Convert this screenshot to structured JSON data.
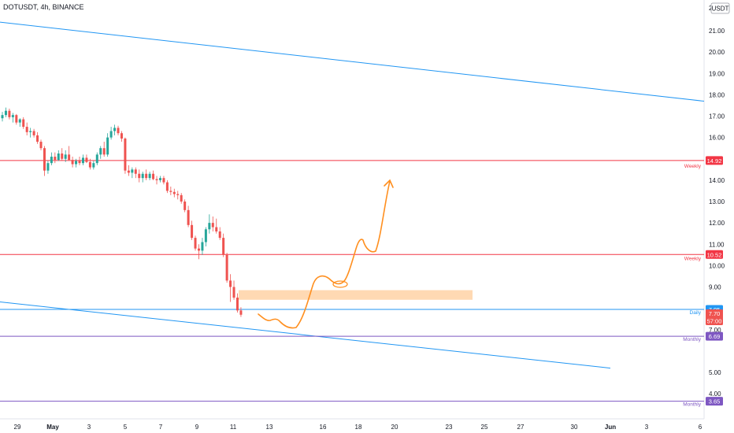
{
  "header": {
    "symbol_title": "DOTUSDT, 4h, BINANCE",
    "currency_badge": "USDT",
    "top_axis_value": "2"
  },
  "colors": {
    "bull": "#26a69a",
    "bear": "#ef5350",
    "red_level": "#f23645",
    "blue_line": "#2196f3",
    "purple_level": "#7e57c2",
    "orange": "#ff8f1f",
    "zone_fill": "#ffcc99",
    "axis_text": "#131722",
    "price_red": "#ef5350"
  },
  "chart_data": {
    "type": "candlestick",
    "symbol": "DOTUSDT",
    "interval": "4h",
    "exchange": "BINANCE",
    "x_tick_labels": [
      "29",
      "May",
      "3",
      "5",
      "7",
      "9",
      "11",
      "13",
      "16",
      "18",
      "20",
      "23",
      "25",
      "27",
      "30",
      "Jun",
      "3",
      "6"
    ],
    "y_tick_labels": [
      "21.00",
      "20.00",
      "19.00",
      "18.00",
      "17.00",
      "16.00",
      "14.00",
      "13.00",
      "12.00",
      "11.00",
      "10.00",
      "9.00",
      "8.00",
      "7.00",
      "5.00",
      "4.00",
      "3.65"
    ],
    "y_range": [
      3.4,
      22
    ],
    "candles": [
      {
        "o": 16.9,
        "h": 17.2,
        "l": 16.75,
        "c": 17.05
      },
      {
        "o": 17.05,
        "h": 17.4,
        "l": 16.95,
        "c": 17.25
      },
      {
        "o": 17.25,
        "h": 17.35,
        "l": 16.85,
        "c": 16.95
      },
      {
        "o": 16.95,
        "h": 17.15,
        "l": 16.7,
        "c": 17.05
      },
      {
        "o": 17.05,
        "h": 17.1,
        "l": 16.6,
        "c": 16.7
      },
      {
        "o": 16.7,
        "h": 16.9,
        "l": 16.5,
        "c": 16.85
      },
      {
        "o": 16.85,
        "h": 16.95,
        "l": 16.4,
        "c": 16.5
      },
      {
        "o": 16.5,
        "h": 16.7,
        "l": 16.1,
        "c": 16.25
      },
      {
        "o": 16.25,
        "h": 16.45,
        "l": 16.0,
        "c": 16.3
      },
      {
        "o": 16.3,
        "h": 16.4,
        "l": 16.0,
        "c": 16.1
      },
      {
        "o": 16.1,
        "h": 16.25,
        "l": 15.7,
        "c": 15.8
      },
      {
        "o": 15.8,
        "h": 15.9,
        "l": 15.4,
        "c": 15.5
      },
      {
        "o": 15.5,
        "h": 15.6,
        "l": 14.2,
        "c": 14.45
      },
      {
        "o": 14.45,
        "h": 14.9,
        "l": 14.3,
        "c": 14.8
      },
      {
        "o": 14.8,
        "h": 15.3,
        "l": 14.7,
        "c": 15.1
      },
      {
        "o": 15.1,
        "h": 15.3,
        "l": 14.8,
        "c": 14.95
      },
      {
        "o": 14.95,
        "h": 15.4,
        "l": 14.9,
        "c": 15.25
      },
      {
        "o": 15.25,
        "h": 15.5,
        "l": 14.9,
        "c": 15.0
      },
      {
        "o": 15.0,
        "h": 15.4,
        "l": 14.85,
        "c": 15.2
      },
      {
        "o": 15.2,
        "h": 15.6,
        "l": 14.9,
        "c": 14.95
      },
      {
        "o": 14.95,
        "h": 15.1,
        "l": 14.6,
        "c": 14.75
      },
      {
        "o": 14.75,
        "h": 15.0,
        "l": 14.6,
        "c": 14.9
      },
      {
        "o": 14.9,
        "h": 15.1,
        "l": 14.7,
        "c": 14.8
      },
      {
        "o": 14.8,
        "h": 15.2,
        "l": 14.7,
        "c": 15.05
      },
      {
        "o": 15.05,
        "h": 15.2,
        "l": 14.8,
        "c": 14.85
      },
      {
        "o": 14.85,
        "h": 15.0,
        "l": 14.5,
        "c": 14.6
      },
      {
        "o": 14.6,
        "h": 14.9,
        "l": 14.5,
        "c": 14.8
      },
      {
        "o": 14.8,
        "h": 15.3,
        "l": 14.7,
        "c": 15.2
      },
      {
        "o": 15.2,
        "h": 15.6,
        "l": 15.0,
        "c": 15.5
      },
      {
        "o": 15.5,
        "h": 15.8,
        "l": 15.1,
        "c": 15.2
      },
      {
        "o": 15.2,
        "h": 16.2,
        "l": 15.1,
        "c": 16.0
      },
      {
        "o": 16.0,
        "h": 16.5,
        "l": 15.9,
        "c": 16.3
      },
      {
        "o": 16.3,
        "h": 16.6,
        "l": 16.1,
        "c": 16.45
      },
      {
        "o": 16.45,
        "h": 16.55,
        "l": 16.1,
        "c": 16.2
      },
      {
        "o": 16.2,
        "h": 16.3,
        "l": 15.8,
        "c": 15.95
      },
      {
        "o": 15.95,
        "h": 16.0,
        "l": 14.3,
        "c": 14.45
      },
      {
        "o": 14.45,
        "h": 14.7,
        "l": 14.2,
        "c": 14.35
      },
      {
        "o": 14.35,
        "h": 14.6,
        "l": 14.1,
        "c": 14.5
      },
      {
        "o": 14.5,
        "h": 14.6,
        "l": 14.1,
        "c": 14.3
      },
      {
        "o": 14.3,
        "h": 14.5,
        "l": 13.9,
        "c": 14.1
      },
      {
        "o": 14.1,
        "h": 14.4,
        "l": 13.9,
        "c": 14.3
      },
      {
        "o": 14.3,
        "h": 14.5,
        "l": 14.0,
        "c": 14.1
      },
      {
        "o": 14.1,
        "h": 14.4,
        "l": 14.0,
        "c": 14.3
      },
      {
        "o": 14.3,
        "h": 14.45,
        "l": 14.0,
        "c": 14.05
      },
      {
        "o": 14.05,
        "h": 14.2,
        "l": 13.8,
        "c": 14.0
      },
      {
        "o": 14.0,
        "h": 14.2,
        "l": 13.9,
        "c": 14.1
      },
      {
        "o": 14.1,
        "h": 14.2,
        "l": 13.8,
        "c": 13.9
      },
      {
        "o": 13.9,
        "h": 14.0,
        "l": 13.4,
        "c": 13.5
      },
      {
        "o": 13.5,
        "h": 13.7,
        "l": 13.3,
        "c": 13.45
      },
      {
        "o": 13.45,
        "h": 13.6,
        "l": 13.2,
        "c": 13.35
      },
      {
        "o": 13.35,
        "h": 13.5,
        "l": 13.1,
        "c": 13.3
      },
      {
        "o": 13.3,
        "h": 13.4,
        "l": 12.9,
        "c": 13.0
      },
      {
        "o": 13.0,
        "h": 13.1,
        "l": 12.5,
        "c": 12.6
      },
      {
        "o": 12.6,
        "h": 12.8,
        "l": 11.8,
        "c": 11.9
      },
      {
        "o": 11.9,
        "h": 12.1,
        "l": 11.2,
        "c": 11.3
      },
      {
        "o": 11.3,
        "h": 11.4,
        "l": 10.7,
        "c": 10.8
      },
      {
        "o": 10.8,
        "h": 11.0,
        "l": 10.3,
        "c": 10.7
      },
      {
        "o": 10.7,
        "h": 11.3,
        "l": 10.5,
        "c": 11.1
      },
      {
        "o": 11.1,
        "h": 11.8,
        "l": 10.9,
        "c": 11.7
      },
      {
        "o": 11.7,
        "h": 12.4,
        "l": 11.5,
        "c": 12.0
      },
      {
        "o": 12.0,
        "h": 12.3,
        "l": 11.6,
        "c": 11.8
      },
      {
        "o": 11.8,
        "h": 12.2,
        "l": 11.5,
        "c": 11.6
      },
      {
        "o": 11.6,
        "h": 11.8,
        "l": 11.2,
        "c": 11.3
      },
      {
        "o": 11.3,
        "h": 11.5,
        "l": 10.4,
        "c": 10.5
      },
      {
        "o": 10.5,
        "h": 10.6,
        "l": 9.2,
        "c": 9.3
      },
      {
        "o": 9.3,
        "h": 9.6,
        "l": 8.3,
        "c": 9.0
      },
      {
        "o": 9.0,
        "h": 9.3,
        "l": 8.4,
        "c": 8.5
      },
      {
        "o": 8.5,
        "h": 8.7,
        "l": 7.8,
        "c": 7.9
      },
      {
        "o": 7.9,
        "h": 8.05,
        "l": 7.6,
        "c": 7.7
      }
    ],
    "price_levels": [
      {
        "name": "Weekly",
        "value": 14.92,
        "badge": "14.92",
        "kind": "red"
      },
      {
        "name": "Weekly",
        "value": 10.52,
        "badge": "10.52",
        "kind": "red"
      },
      {
        "name": "Daily",
        "value": 7.95,
        "badge": "7.95",
        "kind": "blue"
      },
      {
        "name": "Monthly",
        "value": 6.69,
        "badge": "6.69",
        "kind": "purple"
      },
      {
        "name": "Monthly",
        "value": 3.65,
        "badge": "3.65",
        "kind": "purple"
      }
    ],
    "last_price": {
      "value": "7.70",
      "countdown": "57:00"
    },
    "demand_zone": {
      "low": 8.4,
      "high": 8.85
    },
    "trendline_upper": {
      "from": 21.4,
      "to": 17.7
    },
    "trendline_lower": {
      "from": 8.3,
      "to": 5.2
    }
  }
}
